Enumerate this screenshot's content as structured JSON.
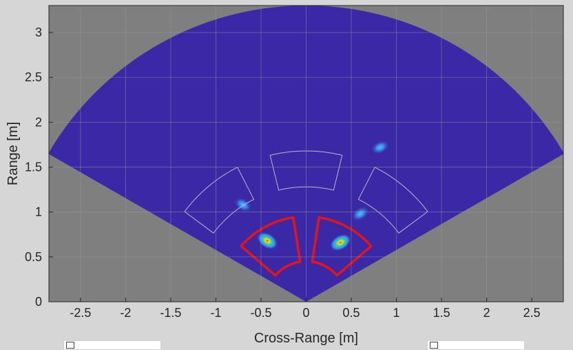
{
  "chart_data": {
    "type": "heatmap",
    "title": "",
    "xlabel": "Cross-Range [m]",
    "ylabel": "Range [m]",
    "xlim": [
      -2.85,
      2.85
    ],
    "ylim": [
      0,
      3.3
    ],
    "xticks": [
      -2.5,
      -2,
      -1.5,
      -1,
      -0.5,
      0,
      0.5,
      1,
      1.5,
      2,
      2.5
    ],
    "xtick_labels": [
      "-2.5",
      "-2",
      "-1.5",
      "-1",
      "-0.5",
      "0",
      "0.5",
      "1",
      "1.5",
      "2",
      "2.5"
    ],
    "yticks": [
      0,
      0.5,
      1,
      1.5,
      2,
      2.5,
      3
    ],
    "ytick_labels": [
      "0",
      "0.5",
      "1",
      "1.5",
      "2",
      "2.5",
      "3"
    ],
    "grid": true,
    "fov": {
      "max_range": 3.3,
      "half_angle_deg": 60
    },
    "hotspots": [
      {
        "x": -0.43,
        "y": 0.68,
        "intensity": 1.0
      },
      {
        "x": 0.38,
        "y": 0.66,
        "intensity": 1.0
      },
      {
        "x": 0.82,
        "y": 1.72,
        "intensity": 0.6
      },
      {
        "x": -0.7,
        "y": 1.08,
        "intensity": 0.45
      },
      {
        "x": 0.6,
        "y": 0.98,
        "intensity": 0.35
      }
    ],
    "zones": [
      {
        "rmin": 1.28,
        "rmax": 1.68,
        "theta_min": 0,
        "theta_max": 0
      },
      {
        "rmin": 1.28,
        "rmax": 1.68,
        "theta_min": 0,
        "theta_max": 0
      },
      {
        "rmin": 1.28,
        "rmax": 1.68,
        "theta_min": 0,
        "theta_max": 0
      },
      {
        "rmin": 0.45,
        "rmax": 0.95,
        "theta_min": 0,
        "theta_max": 0
      },
      {
        "rmin": 0.45,
        "rmax": 0.95,
        "theta_min": 0,
        "theta_max": 0
      }
    ]
  },
  "colors": {
    "figure_bg": "#d6d6d6",
    "axes_bg": "#7f7f7f",
    "fov_fill": "#3a28a6",
    "zone_inactive": "#b9b9c9",
    "zone_active": "#e81414",
    "grid": "#9a9a9a",
    "text": "#262626"
  }
}
